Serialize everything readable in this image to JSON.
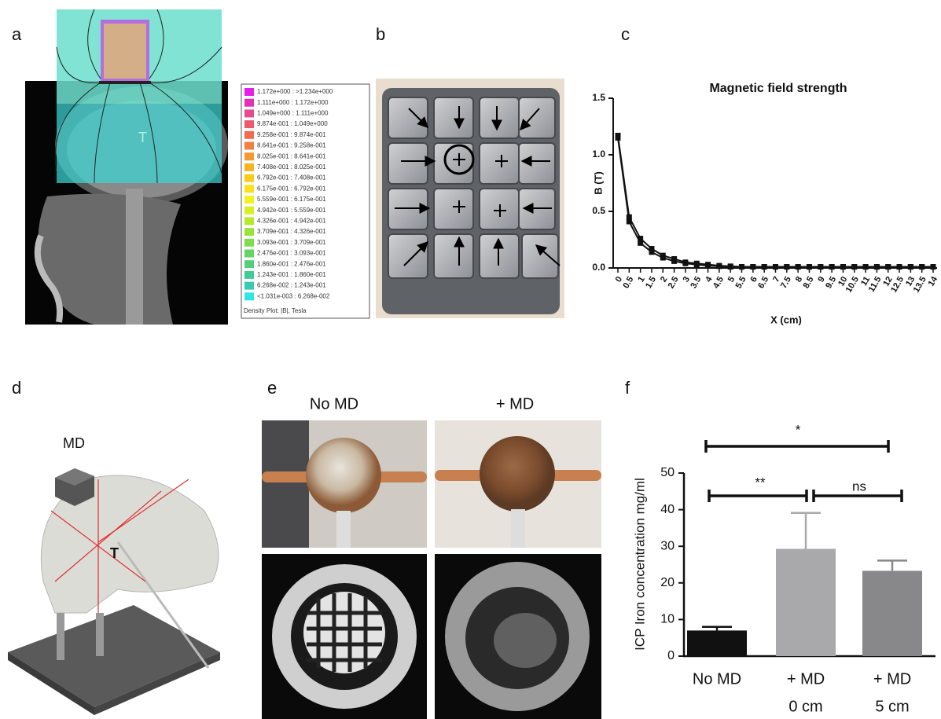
{
  "panels": {
    "a": {
      "label": "a",
      "marker": "T",
      "legend": [
        {
          "label": "1.172e+000 : >1.234e+000",
          "color": "#e81de8"
        },
        {
          "label": "1.111e+000 : 1.172e+000",
          "color": "#e52fb8"
        },
        {
          "label": "1.049e+000 : 1.111e+000",
          "color": "#e84a8f"
        },
        {
          "label": "9.874e-001 : 1.049e+000",
          "color": "#ec5a6e"
        },
        {
          "label": "9.258e-001 : 9.874e-001",
          "color": "#f06a55"
        },
        {
          "label": "8.641e-001 : 9.258e-001",
          "color": "#f3803f"
        },
        {
          "label": "8.025e-001 : 8.641e-001",
          "color": "#f59a2e"
        },
        {
          "label": "7.408e-001 : 8.025e-001",
          "color": "#f8b323"
        },
        {
          "label": "6.792e-001 : 7.408e-001",
          "color": "#fbcb1c"
        },
        {
          "label": "6.175e-001 : 6.792e-001",
          "color": "#fde11a"
        },
        {
          "label": "5.559e-001 : 6.175e-001",
          "color": "#f2f21c"
        },
        {
          "label": "4.942e-001 : 5.559e-001",
          "color": "#d7f023"
        },
        {
          "label": "4.326e-001 : 4.942e-001",
          "color": "#b8ea2c"
        },
        {
          "label": "3.709e-001 : 4.326e-001",
          "color": "#9ae43a"
        },
        {
          "label": "3.093e-001 : 3.709e-001",
          "color": "#7fdc4d"
        },
        {
          "label": "2.476e-001 : 3.093e-001",
          "color": "#66d563"
        },
        {
          "label": "1.860e-001 : 2.476e-001",
          "color": "#52cf7c"
        },
        {
          "label": "1.243e-001 : 1.860e-001",
          "color": "#42cb98"
        },
        {
          "label": "6.268e-002 : 1.243e-001",
          "color": "#36cbb6"
        },
        {
          "label": "<1.031e-003 : 6.268e-002",
          "color": "#2ee6e6"
        }
      ],
      "legend_caption": "Density Plot: |B|, Tesla"
    },
    "b": {
      "label": "b"
    },
    "d": {
      "label": "d",
      "device": "MD",
      "target": "T"
    },
    "e": {
      "label": "e",
      "columns": [
        "No MD",
        "+ MD"
      ]
    }
  },
  "chart_data": [
    {
      "type": "line",
      "panel_label": "c",
      "title": "Magnetic field strength",
      "xlabel": "X (cm)",
      "ylabel": "B (T)",
      "x": [
        0,
        0.5,
        1,
        1.5,
        2,
        2.5,
        3,
        3.5,
        4,
        4.5,
        5,
        5.5,
        6,
        6.5,
        7,
        7.5,
        8,
        8.5,
        9,
        9.5,
        10,
        10.5,
        11,
        11.5,
        12,
        12.5,
        13,
        13.5,
        14
      ],
      "series": [
        {
          "color": "#111111",
          "values": [
            1.17,
            0.45,
            0.26,
            0.17,
            0.11,
            0.08,
            0.05,
            0.04,
            0.03,
            0.02,
            0.015,
            0.01,
            0.01,
            0.01,
            0.01,
            0.01,
            0.01,
            0.01,
            0.01,
            0.01,
            0.01,
            0.01,
            0.01,
            0.01,
            0.01,
            0.01,
            0.01,
            0.01,
            0.01
          ]
        },
        {
          "color": "#111111",
          "values": [
            1.15,
            0.41,
            0.22,
            0.14,
            0.09,
            0.06,
            0.04,
            0.03,
            0.02,
            0.015,
            0.01,
            0.01,
            0.01,
            0.01,
            0.01,
            0.01,
            0.01,
            0.01,
            0.01,
            0.01,
            0.01,
            0.01,
            0.01,
            0.01,
            0.01,
            0.01,
            0.01,
            0.01,
            0.01
          ]
        }
      ],
      "xlim": [
        0,
        14
      ],
      "xticks": [
        0,
        0.5,
        1,
        1.5,
        2,
        2.5,
        3,
        3.5,
        4,
        4.5,
        5,
        5.5,
        6,
        6.5,
        7,
        7.5,
        8,
        8.5,
        9,
        9.5,
        10,
        10.5,
        11,
        11.5,
        12,
        12.5,
        13,
        13.5,
        14
      ],
      "ylim": [
        0,
        1.5
      ],
      "yticks": [
        {
          "value": 0,
          "label": "0.0"
        },
        0.5,
        {
          "value": 1,
          "label": "1.0"
        },
        1.5
      ]
    },
    {
      "type": "bar",
      "panel_label": "f",
      "ylabel": "ICP Iron concentration mg/ml",
      "categories": [
        [
          "No MD"
        ],
        [
          "+ MD",
          "0 cm"
        ],
        [
          "+ MD",
          "5 cm"
        ]
      ],
      "values": [
        7,
        29.3,
        23.3
      ],
      "errors": [
        1,
        9.8,
        2.8
      ],
      "colors": [
        "#111111",
        "#a9a9ab",
        "#88888a"
      ],
      "significance": [
        "*",
        "**",
        "ns"
      ],
      "ylim": [
        0,
        50
      ],
      "yticks": [
        0,
        10,
        20,
        30,
        40,
        50
      ]
    }
  ]
}
